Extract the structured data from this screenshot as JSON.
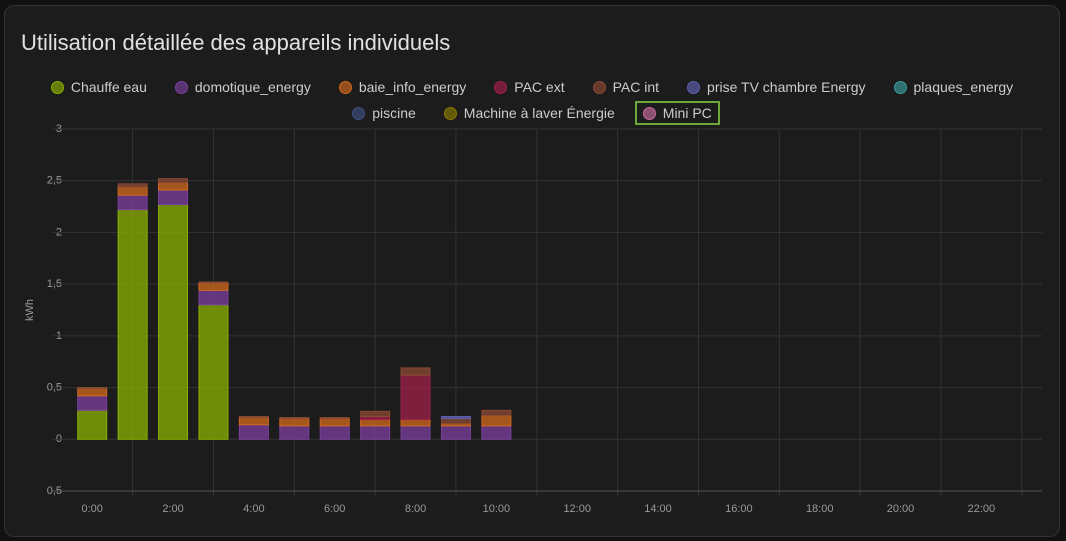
{
  "chart_data": {
    "type": "bar",
    "stacked": true,
    "title": "Utilisation détaillée des appareils individuels",
    "ylabel": "kWh",
    "categories": [
      "0:00",
      null,
      "2:00",
      null,
      "4:00",
      null,
      "6:00",
      null,
      "8:00",
      null,
      "10:00",
      null,
      "12:00",
      null,
      "14:00",
      null,
      "16:00",
      null,
      "18:00",
      null,
      "20:00",
      null,
      "22:00",
      null
    ],
    "ylim": [
      -0.5,
      3
    ],
    "yticks": [
      {
        "value": -0.5,
        "label": "0,5"
      },
      0,
      {
        "value": 0.5,
        "label": "0,5"
      },
      1,
      {
        "value": 1.5,
        "label": "1,5"
      },
      2,
      {
        "value": 2.5,
        "label": "2,5"
      },
      3
    ],
    "grid": true,
    "series": [
      {
        "name": "Chauffe eau",
        "color": "#8bb000",
        "values": [
          0.28,
          2.22,
          2.27,
          1.3,
          0,
          0,
          0,
          0,
          0,
          0,
          0,
          null,
          null,
          null,
          null,
          null,
          null,
          null,
          null,
          null,
          null,
          null,
          null,
          null
        ]
      },
      {
        "name": "domotique_energy",
        "color": "#7b3f9e",
        "values": [
          0.14,
          0.14,
          0.14,
          0.14,
          0.14,
          0.13,
          0.13,
          0.13,
          0.13,
          0.13,
          0.13,
          null,
          null,
          null,
          null,
          null,
          null,
          null,
          null,
          null,
          null,
          null,
          null,
          null
        ]
      },
      {
        "name": "baie_info_energy",
        "color": "#d2691e",
        "values": [
          0.07,
          0.08,
          0.07,
          0.07,
          0.07,
          0.07,
          0.07,
          0.06,
          0.06,
          0.02,
          0.1,
          null,
          null,
          null,
          null,
          null,
          null,
          null,
          null,
          null,
          null,
          null,
          null,
          null
        ]
      },
      {
        "name": "PAC ext",
        "color": "#a0204a",
        "values": [
          0,
          0,
          0,
          0,
          0,
          0,
          0,
          0.03,
          0.43,
          0,
          0,
          null,
          null,
          null,
          null,
          null,
          null,
          null,
          null,
          null,
          null,
          null,
          null,
          null
        ]
      },
      {
        "name": "PAC int",
        "color": "#8b4a33",
        "values": [
          0.01,
          0.03,
          0.04,
          0.01,
          0.01,
          0.01,
          0.01,
          0.05,
          0.07,
          0.05,
          0.05,
          null,
          null,
          null,
          null,
          null,
          null,
          null,
          null,
          null,
          null,
          null,
          null,
          null
        ]
      },
      {
        "name": "prise TV chambre Energy",
        "color": "#6060b0",
        "values": [
          0,
          0,
          0,
          0,
          0,
          0,
          0,
          0,
          0,
          0.02,
          0,
          null,
          null,
          null,
          null,
          null,
          null,
          null,
          null,
          null,
          null,
          null,
          null,
          null
        ]
      },
      {
        "name": "plaques_energy",
        "color": "#3a9a9a",
        "values": [
          0,
          0,
          0,
          0,
          0,
          0,
          0,
          0,
          0,
          0,
          0,
          null,
          null,
          null,
          null,
          null,
          null,
          null,
          null,
          null,
          null,
          null,
          null,
          null
        ]
      },
      {
        "name": "piscine",
        "color": "#3e5080",
        "values": [
          0,
          0,
          0,
          0,
          0,
          0,
          0,
          0,
          0,
          0,
          0,
          null,
          null,
          null,
          null,
          null,
          null,
          null,
          null,
          null,
          null,
          null,
          null,
          null
        ]
      },
      {
        "name": "Machine à laver Énergie",
        "color": "#8a7a00",
        "values": [
          0,
          0,
          0,
          0,
          0,
          0,
          0,
          0,
          0,
          0,
          0,
          null,
          null,
          null,
          null,
          null,
          null,
          null,
          null,
          null,
          null,
          null,
          null,
          null
        ]
      },
      {
        "name": "Mini PC",
        "color": "#c86a9a",
        "values": [
          0,
          0,
          0,
          0,
          0,
          0,
          0,
          0,
          0,
          0,
          0,
          null,
          null,
          null,
          null,
          null,
          null,
          null,
          null,
          null,
          null,
          null,
          null,
          null
        ]
      }
    ]
  }
}
